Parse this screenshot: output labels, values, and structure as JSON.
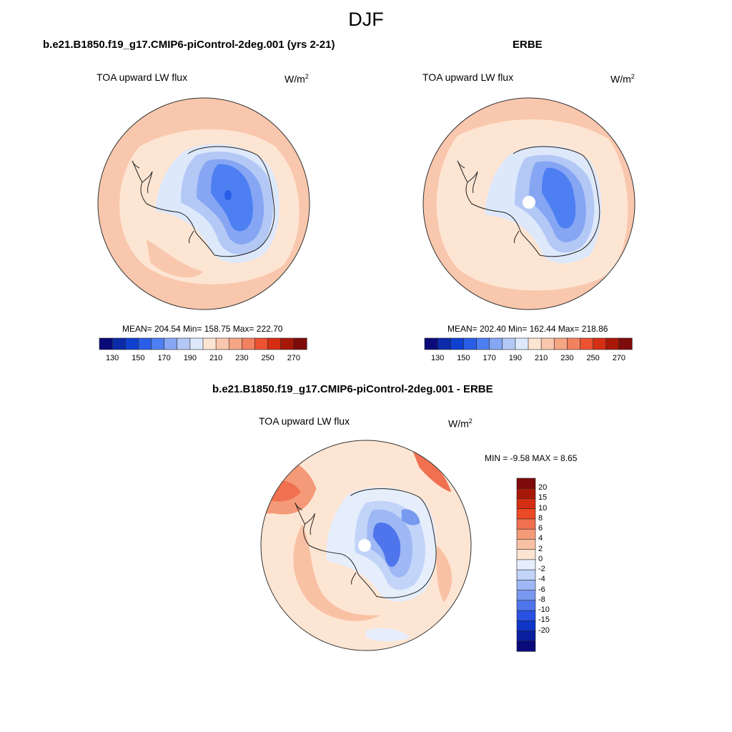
{
  "main_title": "DJF",
  "panels": {
    "model": {
      "title": "b.e21.B1850.f19_g17.CMIP6-piControl-2deg.001 (yrs 2-21)",
      "variable": "TOA upward LW flux",
      "units_base": "W/m",
      "units_exp": "2",
      "stats": "MEAN= 204.54  Min= 158.75  Max= 222.70"
    },
    "obs": {
      "title": "ERBE",
      "variable": "TOA upward LW flux",
      "units_base": "W/m",
      "units_exp": "2",
      "stats": "MEAN= 202.40  Min= 162.44  Max= 218.86"
    },
    "diff": {
      "title": "b.e21.B1850.f19_g17.CMIP6-piControl-2deg.001 - ERBE",
      "variable": "TOA upward LW flux",
      "units_base": "W/m",
      "units_exp": "2",
      "stats": "MIN =  -9.58 MAX =   8.65"
    }
  },
  "colorbar_abs": {
    "colors": [
      "#0a0a7a",
      "#0b2ba8",
      "#0f40d0",
      "#2a5ee8",
      "#4e7ff2",
      "#86a6f4",
      "#b4c8f6",
      "#dde8fb",
      "#fde5d3",
      "#f9c7ad",
      "#f5a684",
      "#f28160",
      "#ec5230",
      "#d42e14",
      "#a81808",
      "#7e0a0a"
    ],
    "ticks": [
      "130",
      "150",
      "170",
      "190",
      "210",
      "230",
      "250",
      "270"
    ]
  },
  "colorbar_diff": {
    "colors": [
      "#7e0a0a",
      "#a81808",
      "#d42e14",
      "#ec4a24",
      "#f07050",
      "#f59a78",
      "#f9c1a4",
      "#fde5d3",
      "#e6eefc",
      "#c2d4f8",
      "#9db8f4",
      "#7899f0",
      "#4f75ec",
      "#2a52e2",
      "#0f36c8",
      "#0a1fa0",
      "#0a0a7a"
    ],
    "ticks": [
      "20",
      "15",
      "10",
      "8",
      "6",
      "4",
      "2",
      "0",
      "-2",
      "-4",
      "-6",
      "-8",
      "-10",
      "-15",
      "-20"
    ]
  },
  "colors": {
    "ocean_warm": "#f9c7ad",
    "ocean_light": "#fde5d3",
    "ice_light": "#dde8fb",
    "ice_mid": "#b4c8f6",
    "ice_blue": "#86a6f4",
    "ice_deep": "#4e7ff2",
    "ice_core": "#2a5ee8"
  }
}
